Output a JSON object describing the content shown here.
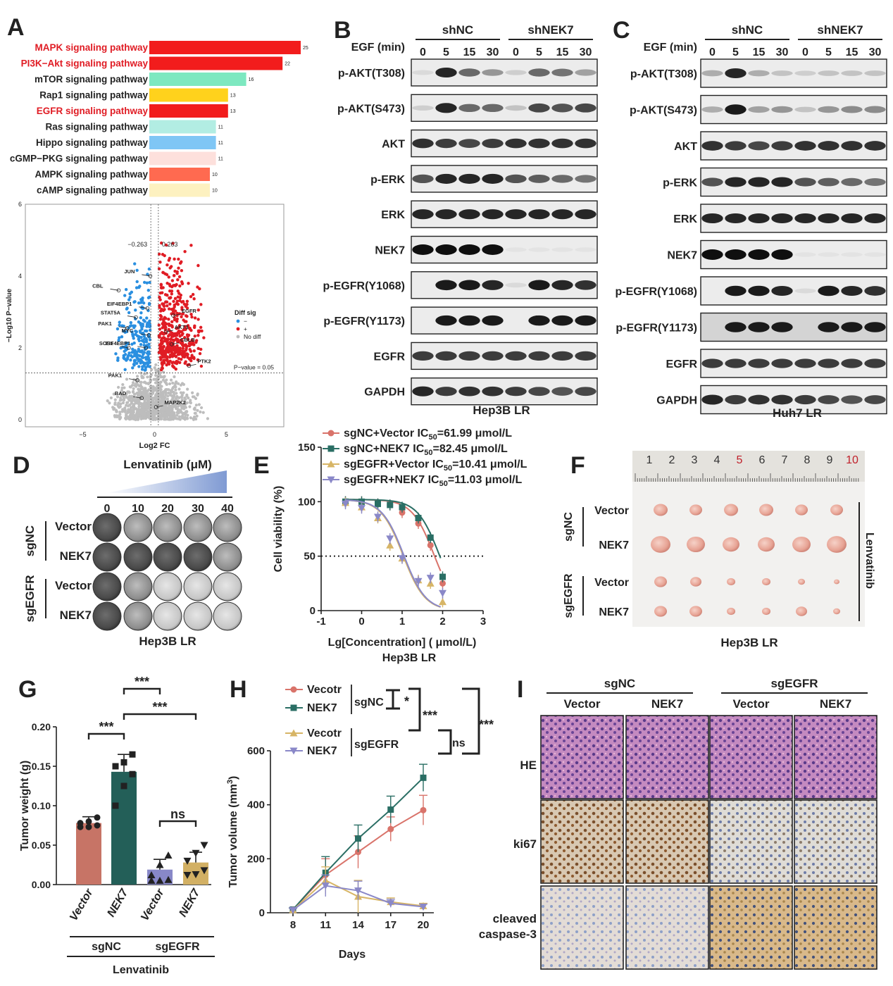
{
  "panels": {
    "A": {
      "letter": "A",
      "bar_chart": {
        "type": "bar",
        "orientation": "horizontal",
        "categories": [
          "MAPK signaling pathway",
          "PI3K−Akt signaling pathway",
          "mTOR signaling pathway",
          "Rap1 signaling pathway",
          "EGFR signaling pathway",
          "Ras signaling pathway",
          "Hippo signaling pathway",
          "cGMP−PKG signaling pathway",
          "AMPK signaling pathway",
          "cAMP signaling pathway"
        ],
        "values": [
          25,
          22,
          16,
          13,
          13,
          11,
          11,
          11,
          10,
          10
        ],
        "value_labels": [
          "25",
          "22",
          "16",
          "13",
          "13",
          "11",
          "11",
          "11",
          "10",
          "10"
        ],
        "bar_colors": [
          "#f21c1c",
          "#f21c1c",
          "#7de8c0",
          "#ffd21c",
          "#f21c1c",
          "#b2ede3",
          "#7fc6f5",
          "#fde0dc",
          "#ff6a50",
          "#fdf1c0"
        ],
        "label_colors": [
          "#e01c24",
          "#e01c24",
          "#222222",
          "#222222",
          "#e01c24",
          "#222222",
          "#222222",
          "#222222",
          "#222222",
          "#222222"
        ]
      },
      "volcano": {
        "type": "scatter",
        "xlabel": "Log2 FC",
        "ylabel": "−Log10 P−value",
        "x_ticks": [
          "−5",
          "0",
          "5"
        ],
        "y_ticks": [
          "0",
          "2",
          "4",
          "6"
        ],
        "xlim": [
          -9,
          9
        ],
        "ylim": [
          -0.2,
          6
        ],
        "thresholds": {
          "fc_neg": "−0.263",
          "fc_pos": "0.263",
          "p_label": "P−value = 0.05"
        },
        "legend": {
          "title": "Diff sig",
          "items": [
            "−",
            "+",
            "No diff"
          ],
          "colors": [
            "#2a8fe0",
            "#e01c24",
            "#bbbbbb"
          ]
        },
        "genes": [
          {
            "name": "JUN",
            "x": -0.3,
            "y": 4.0
          },
          {
            "name": "CBL",
            "x": -2.5,
            "y": 3.6
          },
          {
            "name": "EIF4EBP1",
            "x": -0.5,
            "y": 3.1
          },
          {
            "name": "STAT5A",
            "x": -1.3,
            "y": 2.85
          },
          {
            "name": "EGFR",
            "x": 1.3,
            "y": 2.9
          },
          {
            "name": "PAK1",
            "x": -1.9,
            "y": 2.55
          },
          {
            "name": "AKT3",
            "x": 0.8,
            "y": 2.45
          },
          {
            "name": "MYC",
            "x": -0.4,
            "y": 2.35
          },
          {
            "name": "EIF4EBP1",
            "x": -0.6,
            "y": 2.0
          },
          {
            "name": "SOS1",
            "x": -1.8,
            "y": 2.0
          },
          {
            "name": "CBLB",
            "x": 1.2,
            "y": 2.1
          },
          {
            "name": "PTK2",
            "x": 2.4,
            "y": 1.5
          },
          {
            "name": "PAK1",
            "x": -1.2,
            "y": 1.1
          },
          {
            "name": "BAD",
            "x": -0.9,
            "y": 0.6
          },
          {
            "name": "MAP2K2",
            "x": 0.1,
            "y": 0.35
          }
        ]
      }
    },
    "B": {
      "letter": "B",
      "egf_label": "EGF (min)",
      "groups": [
        "shNC",
        "shNEK7"
      ],
      "timepoints": [
        "0",
        "5",
        "15",
        "30",
        "0",
        "5",
        "15",
        "30"
      ],
      "rows": [
        "p-AKT(T308)",
        "p-AKT(S473)",
        "AKT",
        "p-ERK",
        "ERK",
        "NEK7",
        "p-EGFR(Y1068)",
        "p-EGFR(Y1173)",
        "EGFR",
        "GAPDH"
      ],
      "footer": "Hep3B LR"
    },
    "C": {
      "letter": "C",
      "egf_label": "EGF (min)",
      "groups": [
        "shNC",
        "shNEK7"
      ],
      "timepoints": [
        "0",
        "5",
        "15",
        "30",
        "0",
        "5",
        "15",
        "30"
      ],
      "rows": [
        "p-AKT(T308)",
        "p-AKT(S473)",
        "AKT",
        "p-ERK",
        "ERK",
        "NEK7",
        "p-EGFR(Y1068)",
        "p-EGFR(Y1173)",
        "EGFR",
        "GAPDH"
      ],
      "footer": "Huh7 LR"
    },
    "D": {
      "letter": "D",
      "drug_label": "Lenvatinib (μM)",
      "doses": [
        "0",
        "10",
        "20",
        "30",
        "40"
      ],
      "groups": [
        "sgNC",
        "sgEGFR"
      ],
      "rows": [
        "Vector",
        "NEK7",
        "Vector",
        "NEK7"
      ],
      "footer": "Hep3B LR"
    },
    "E": {
      "letter": "E",
      "chart_data": {
        "type": "line",
        "xlabel": "Lg[Concentration] ( μmol/L)",
        "ylabel": "Cell viability (%)",
        "x_ticks": [
          "-1",
          "0",
          "1",
          "2",
          "3"
        ],
        "y_ticks": [
          "0",
          "50",
          "100",
          "150"
        ],
        "xlim": [
          -1,
          3
        ],
        "ylim": [
          0,
          150
        ],
        "reference_line": 50,
        "footer": "Hep3B LR",
        "x": [
          -0.4,
          0,
          0.4,
          0.7,
          1.0,
          1.4,
          1.7,
          2.0
        ],
        "series": [
          {
            "name": "sgNC+Vector",
            "ic50_label": "IC",
            "ic50_sub": "50",
            "ic50_value": "=61.99 μmol/L",
            "color": "#d9736a",
            "marker": "circle",
            "values": [
              100,
              100,
              98,
              97,
              90,
              80,
              60,
              25
            ]
          },
          {
            "name": "sgNC+NEK7",
            "ic50_label": "IC",
            "ic50_sub": "50",
            "ic50_value": "=82.45 μmol/L",
            "color": "#2a6e64",
            "marker": "square",
            "values": [
              100,
              100,
              98,
              97,
              95,
              85,
              67,
              31
            ]
          },
          {
            "name": "sgEGFR+Vector",
            "ic50_label": "IC",
            "ic50_sub": "50",
            "ic50_value": "=10.41 μmol/L",
            "color": "#d7b566",
            "marker": "triangle-up",
            "values": [
              99,
              95,
              85,
              60,
              48,
              28,
              25,
              8
            ]
          },
          {
            "name": "sgEGFR+NEK7",
            "ic50_label": "IC",
            "ic50_sub": "50",
            "ic50_value": "=11.03 μmol/L",
            "color": "#8a88c8",
            "marker": "triangle-down",
            "values": [
              98,
              94,
              86,
              66,
              48,
              27,
              30,
              16
            ]
          }
        ]
      }
    },
    "F": {
      "letter": "F",
      "ruler_numbers": [
        "1",
        "2",
        "3",
        "4",
        "5",
        "6",
        "7",
        "8",
        "9",
        "10"
      ],
      "groups": [
        "sgNC",
        "sgEGFR"
      ],
      "rows": [
        "Vector",
        "NEK7",
        "Vector",
        "NEK7"
      ],
      "treatment": "Lenvatinib",
      "footer": "Hep3B LR"
    },
    "G": {
      "letter": "G",
      "chart_data": {
        "type": "bar",
        "ylabel": "Tumor weight (g)",
        "categories": [
          "Vector",
          "NEK7",
          "Vector",
          "NEK7"
        ],
        "values": [
          0.078,
          0.143,
          0.019,
          0.028
        ],
        "errors": [
          0.008,
          0.022,
          0.013,
          0.013
        ],
        "points": [
          [
            0.073,
            0.073,
            0.075,
            0.078,
            0.08,
            0.085
          ],
          [
            0.1,
            0.125,
            0.14,
            0.15,
            0.155,
            0.165
          ],
          [
            0.005,
            0.005,
            0.006,
            0.012,
            0.025,
            0.037
          ],
          [
            0.012,
            0.013,
            0.018,
            0.03,
            0.04,
            0.05
          ]
        ],
        "y_ticks": [
          "0.00",
          "0.05",
          "0.10",
          "0.15",
          "0.20"
        ],
        "ylim": [
          0,
          0.2
        ],
        "colors": [
          "#c77466",
          "#235f58",
          "#8888c8",
          "#d2b064"
        ],
        "groups": [
          "sgNC",
          "sgEGFR"
        ],
        "treatment": "Lenvatinib",
        "significance": [
          "***",
          "***",
          "***",
          "ns"
        ]
      }
    },
    "H": {
      "letter": "H",
      "chart_data": {
        "type": "line",
        "xlabel": "Days",
        "ylabel": "Tumor volume (mm",
        "ylabel_sup": "3",
        "ylabel_end": ")",
        "x": [
          8,
          11,
          14,
          17,
          20
        ],
        "x_ticks": [
          "8",
          "11",
          "14",
          "17",
          "20"
        ],
        "y_ticks": [
          "0",
          "200",
          "400",
          "600"
        ],
        "ylim": [
          0,
          600
        ],
        "series": [
          {
            "name": "Vecotr",
            "group": "sgNC",
            "color": "#d9736a",
            "marker": "circle",
            "values": [
              12,
              140,
              225,
              310,
              380
            ]
          },
          {
            "name": "NEK7",
            "group": "sgNC",
            "color": "#2a6e64",
            "marker": "square",
            "values": [
              12,
              148,
              275,
              382,
              500
            ]
          },
          {
            "name": "Vecotr",
            "group": "sgEGFR",
            "color": "#d7b566",
            "marker": "triangle-up",
            "values": [
              10,
              120,
              60,
              40,
              25
            ]
          },
          {
            "name": "NEK7",
            "group": "sgEGFR",
            "color": "#8a88c8",
            "marker": "triangle-down",
            "values": [
              10,
              100,
              82,
              35,
              22
            ]
          }
        ],
        "groups": [
          "sgNC",
          "sgEGFR"
        ],
        "significance": [
          "*",
          "***",
          "ns",
          "***"
        ]
      }
    },
    "I": {
      "letter": "I",
      "groups": [
        "sgNC",
        "sgEGFR"
      ],
      "columns": [
        "Vector",
        "NEK7",
        "Vector",
        "NEK7"
      ],
      "rows": [
        "HE",
        "ki67",
        "cleaved",
        "caspase-3"
      ]
    }
  }
}
